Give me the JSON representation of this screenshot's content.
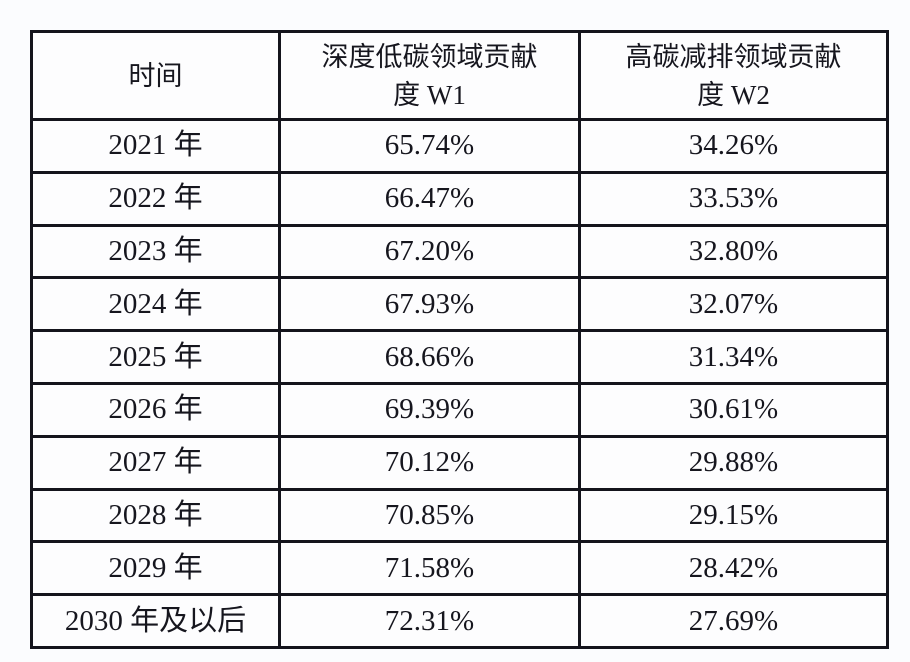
{
  "table": {
    "headers": [
      {
        "lines": [
          "时间",
          ""
        ]
      },
      {
        "lines": [
          "深度低碳领域贡献",
          "度 W1"
        ]
      },
      {
        "lines": [
          "高碳减排领域贡献",
          "度 W2"
        ]
      }
    ],
    "rows": [
      [
        "2021 年",
        "65.74%",
        "34.26%"
      ],
      [
        "2022 年",
        "66.47%",
        "33.53%"
      ],
      [
        "2023 年",
        "67.20%",
        "32.80%"
      ],
      [
        "2024 年",
        "67.93%",
        "32.07%"
      ],
      [
        "2025 年",
        "68.66%",
        "31.34%"
      ],
      [
        "2026 年",
        "69.39%",
        "30.61%"
      ],
      [
        "2027 年",
        "70.12%",
        "29.88%"
      ],
      [
        "2028 年",
        "70.85%",
        "29.15%"
      ],
      [
        "2029 年",
        "71.58%",
        "28.42%"
      ],
      [
        "2030 年及以后",
        "72.31%",
        "27.69%"
      ]
    ]
  },
  "colors": {
    "border": "#14141c",
    "cell_background": "#fdfdfe",
    "page_background": "#fbfcfe",
    "text": "#16161e"
  }
}
